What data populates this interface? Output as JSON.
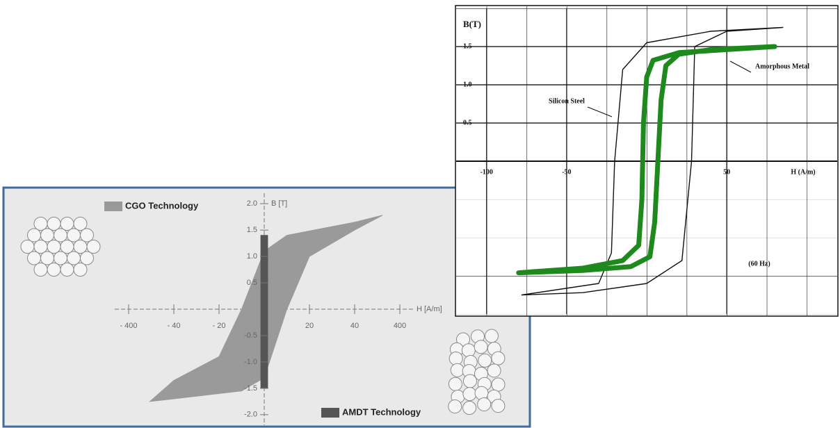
{
  "chart_data": [
    {
      "type": "line",
      "ylabel": "B(T)",
      "xlabel": "H (A/m)",
      "xlim": [
        -119,
        119
      ],
      "ylim": [
        -2,
        2
      ],
      "xticks": [
        -100,
        -50,
        50
      ],
      "yticks": [
        0.5,
        {
          "value": 1,
          "label": "1.0"
        },
        1.5
      ],
      "grid": true,
      "annotations": [
        "(60 Hz)"
      ],
      "series": [
        {
          "name": "Silicon Steel",
          "color": "#111111",
          "x": [
            -78,
            -30,
            -22,
            -20,
            -15,
            0,
            40,
            85,
            50,
            30,
            28,
            22,
            0,
            -40,
            -78
          ],
          "values": [
            -1.75,
            -1.6,
            -1.2,
            0,
            1.2,
            1.55,
            1.7,
            1.75,
            1.7,
            1.5,
            0,
            -1.3,
            -1.6,
            -1.72,
            -1.75
          ]
        },
        {
          "name": "Amorphous Metal",
          "color": "#1e8a1e",
          "x": [
            -80,
            -40,
            -15,
            -5,
            -3,
            -2,
            0,
            4,
            20,
            50,
            80,
            40,
            20,
            12,
            9,
            7,
            5,
            2,
            -10,
            -40,
            -80
          ],
          "values": [
            -1.46,
            -1.4,
            -1.3,
            -1.1,
            -0.5,
            0.5,
            1.1,
            1.32,
            1.42,
            1.46,
            1.5,
            1.46,
            1.4,
            1.25,
            0.8,
            0,
            -0.8,
            -1.25,
            -1.38,
            -1.43,
            -1.46
          ]
        }
      ]
    },
    {
      "type": "area",
      "ylabel": "B [T]",
      "xlabel": "H [A/m]",
      "xlim": [
        -400,
        400
      ],
      "ylim": [
        -2.2,
        2.2
      ],
      "xticks": [
        {
          "value": -400,
          "label": "- 400"
        },
        {
          "value": -40,
          "label": "- 40"
        },
        {
          "value": -20,
          "label": "- 20"
        },
        20,
        40,
        400
      ],
      "yticks": [
        {
          "value": 2,
          "label": "2.0"
        },
        1.5,
        {
          "value": 1,
          "label": "1.0"
        },
        0.5,
        -0.5,
        {
          "value": -1,
          "label": "-1.0"
        },
        -1.5,
        {
          "value": -2,
          "label": "-2.0"
        }
      ],
      "series": [
        {
          "name": "CGO Technology",
          "color": "#9a9a9a",
          "x": [
            -230,
            -40,
            -20,
            -10,
            0,
            10,
            40,
            261,
            40,
            20,
            10,
            0,
            -10,
            -40,
            -230
          ],
          "values": [
            -1.75,
            -1.35,
            -0.9,
            0,
            1.1,
            1.4,
            1.65,
            1.78,
            1.5,
            1,
            0,
            -1.3,
            -1.55,
            -1.7,
            -1.75
          ]
        },
        {
          "name": "AMDT Technology",
          "color": "#555555",
          "x": [
            -1.5,
            -1.5,
            1.5,
            1.5,
            -1.5
          ],
          "values": [
            -1.5,
            1.4,
            1.4,
            -1.5,
            -1.5
          ]
        }
      ]
    }
  ]
}
